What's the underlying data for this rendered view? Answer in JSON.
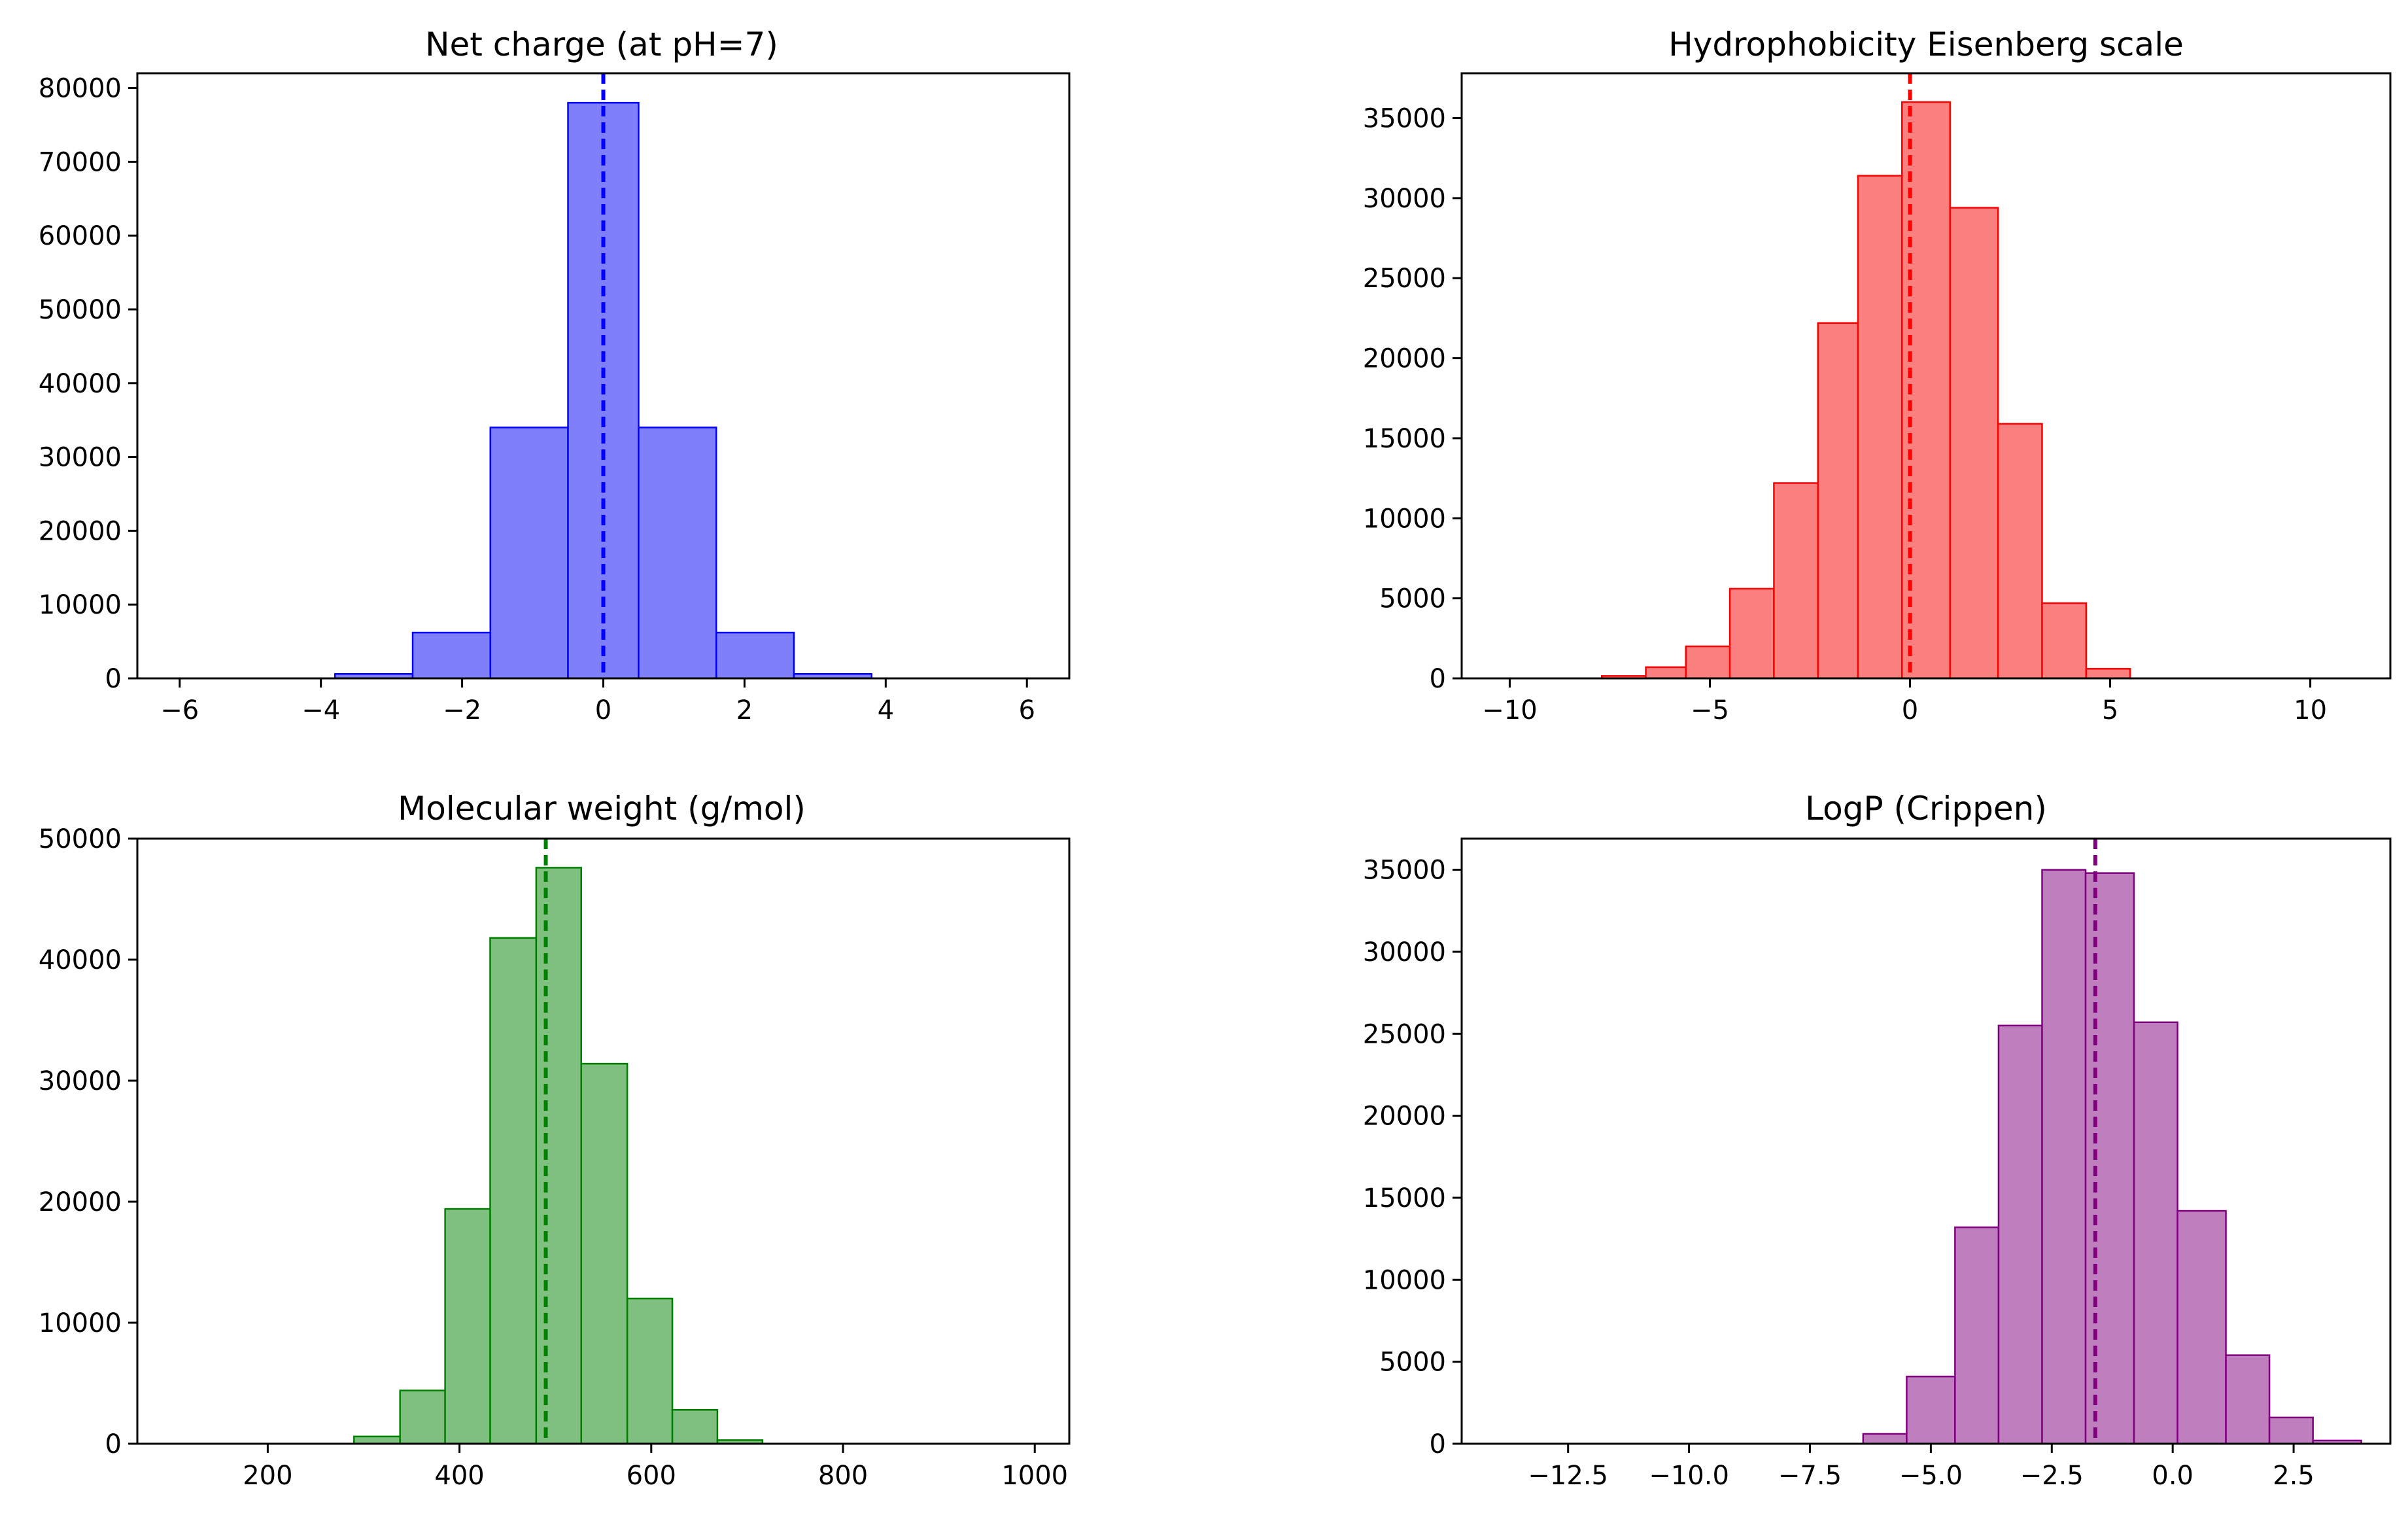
{
  "figure": {
    "background": "#ffffff"
  },
  "chart_data": [
    {
      "type": "bar",
      "title": "Net charge (at pH=7)",
      "color": "#7f7ffa",
      "edge_color": "#0000ff",
      "line_color": "#0000ff",
      "mean": 0,
      "xlim": [
        -6.6,
        6.6
      ],
      "ylim": [
        0,
        82000
      ],
      "xticks": [
        -6,
        -4,
        -2,
        0,
        2,
        4,
        6
      ],
      "xtick_labels": [
        "−6",
        "−4",
        "−2",
        "0",
        "2",
        "4",
        "6"
      ],
      "yticks": [
        0,
        10000,
        20000,
        30000,
        40000,
        50000,
        60000,
        70000,
        80000
      ],
      "ytick_labels": [
        "0",
        "10000",
        "20000",
        "30000",
        "40000",
        "50000",
        "60000",
        "70000",
        "80000"
      ],
      "bins": [
        -3.8,
        -2.7,
        -1.6,
        -0.5,
        0.5,
        1.6,
        2.7,
        3.8
      ],
      "counts": [
        600,
        6200,
        34000,
        78000,
        34000,
        6200,
        600
      ]
    },
    {
      "type": "bar",
      "title": "Hydrophobicity Eisenberg scale",
      "color": "#fa7f7f",
      "edge_color": "#ff0000",
      "line_color": "#ff0000",
      "mean": 0,
      "xlim": [
        -11.2,
        12
      ],
      "ylim": [
        0,
        37800
      ],
      "xticks": [
        -10,
        -5,
        0,
        5,
        10
      ],
      "xtick_labels": [
        "−10",
        "−5",
        "0",
        "5",
        "10"
      ],
      "yticks": [
        0,
        5000,
        10000,
        15000,
        20000,
        25000,
        30000,
        35000
      ],
      "ytick_labels": [
        "0",
        "5000",
        "10000",
        "15000",
        "20000",
        "25000",
        "30000",
        "35000"
      ],
      "bins": [
        -7.7,
        -6.6,
        -5.6,
        -4.5,
        -3.4,
        -2.3,
        -1.3,
        -0.2,
        1.0,
        2.2,
        3.3,
        4.4,
        5.5
      ],
      "counts": [
        150,
        700,
        2000,
        5600,
        12200,
        22200,
        31400,
        36000,
        29400,
        15900,
        4700,
        600
      ]
    },
    {
      "type": "bar",
      "title": "Molecular weight (g/mol)",
      "color": "#7fbf7f",
      "edge_color": "#008000",
      "line_color": "#008000",
      "mean": 490,
      "xlim": [
        64,
        1036
      ],
      "ylim": [
        0,
        50000
      ],
      "xticks": [
        200,
        400,
        600,
        800,
        1000
      ],
      "xtick_labels": [
        "200",
        "400",
        "600",
        "800",
        "1000"
      ],
      "yticks": [
        0,
        10000,
        20000,
        30000,
        40000,
        50000
      ],
      "ytick_labels": [
        "0",
        "10000",
        "20000",
        "30000",
        "40000",
        "50000"
      ],
      "bins": [
        290,
        338,
        385,
        432,
        480,
        527,
        575,
        622,
        669,
        716
      ],
      "counts": [
        600,
        4400,
        19400,
        41800,
        47600,
        31400,
        12000,
        2800,
        300
      ]
    },
    {
      "type": "bar",
      "title": "LogP (Crippen)",
      "color": "#bf7fbf",
      "edge_color": "#800080",
      "line_color": "#800080",
      "mean": -1.6,
      "xlim": [
        -14.7,
        4.5
      ],
      "ylim": [
        0,
        36900
      ],
      "xticks": [
        -12.5,
        -10.0,
        -7.5,
        -5.0,
        -2.5,
        0.0,
        2.5
      ],
      "xtick_labels": [
        "−12.5",
        "−10.0",
        "−7.5",
        "−5.0",
        "−2.5",
        "0.0",
        "2.5"
      ],
      "yticks": [
        0,
        5000,
        10000,
        15000,
        20000,
        25000,
        30000,
        35000
      ],
      "ytick_labels": [
        "0",
        "5000",
        "10000",
        "15000",
        "20000",
        "25000",
        "30000",
        "35000"
      ],
      "bins": [
        -6.4,
        -5.5,
        -4.5,
        -3.6,
        -2.7,
        -1.8,
        -0.8,
        0.1,
        1.1,
        2.0,
        2.9,
        3.9
      ],
      "counts": [
        600,
        4100,
        13200,
        25500,
        35000,
        34800,
        25700,
        14200,
        5400,
        1600,
        200
      ]
    }
  ]
}
